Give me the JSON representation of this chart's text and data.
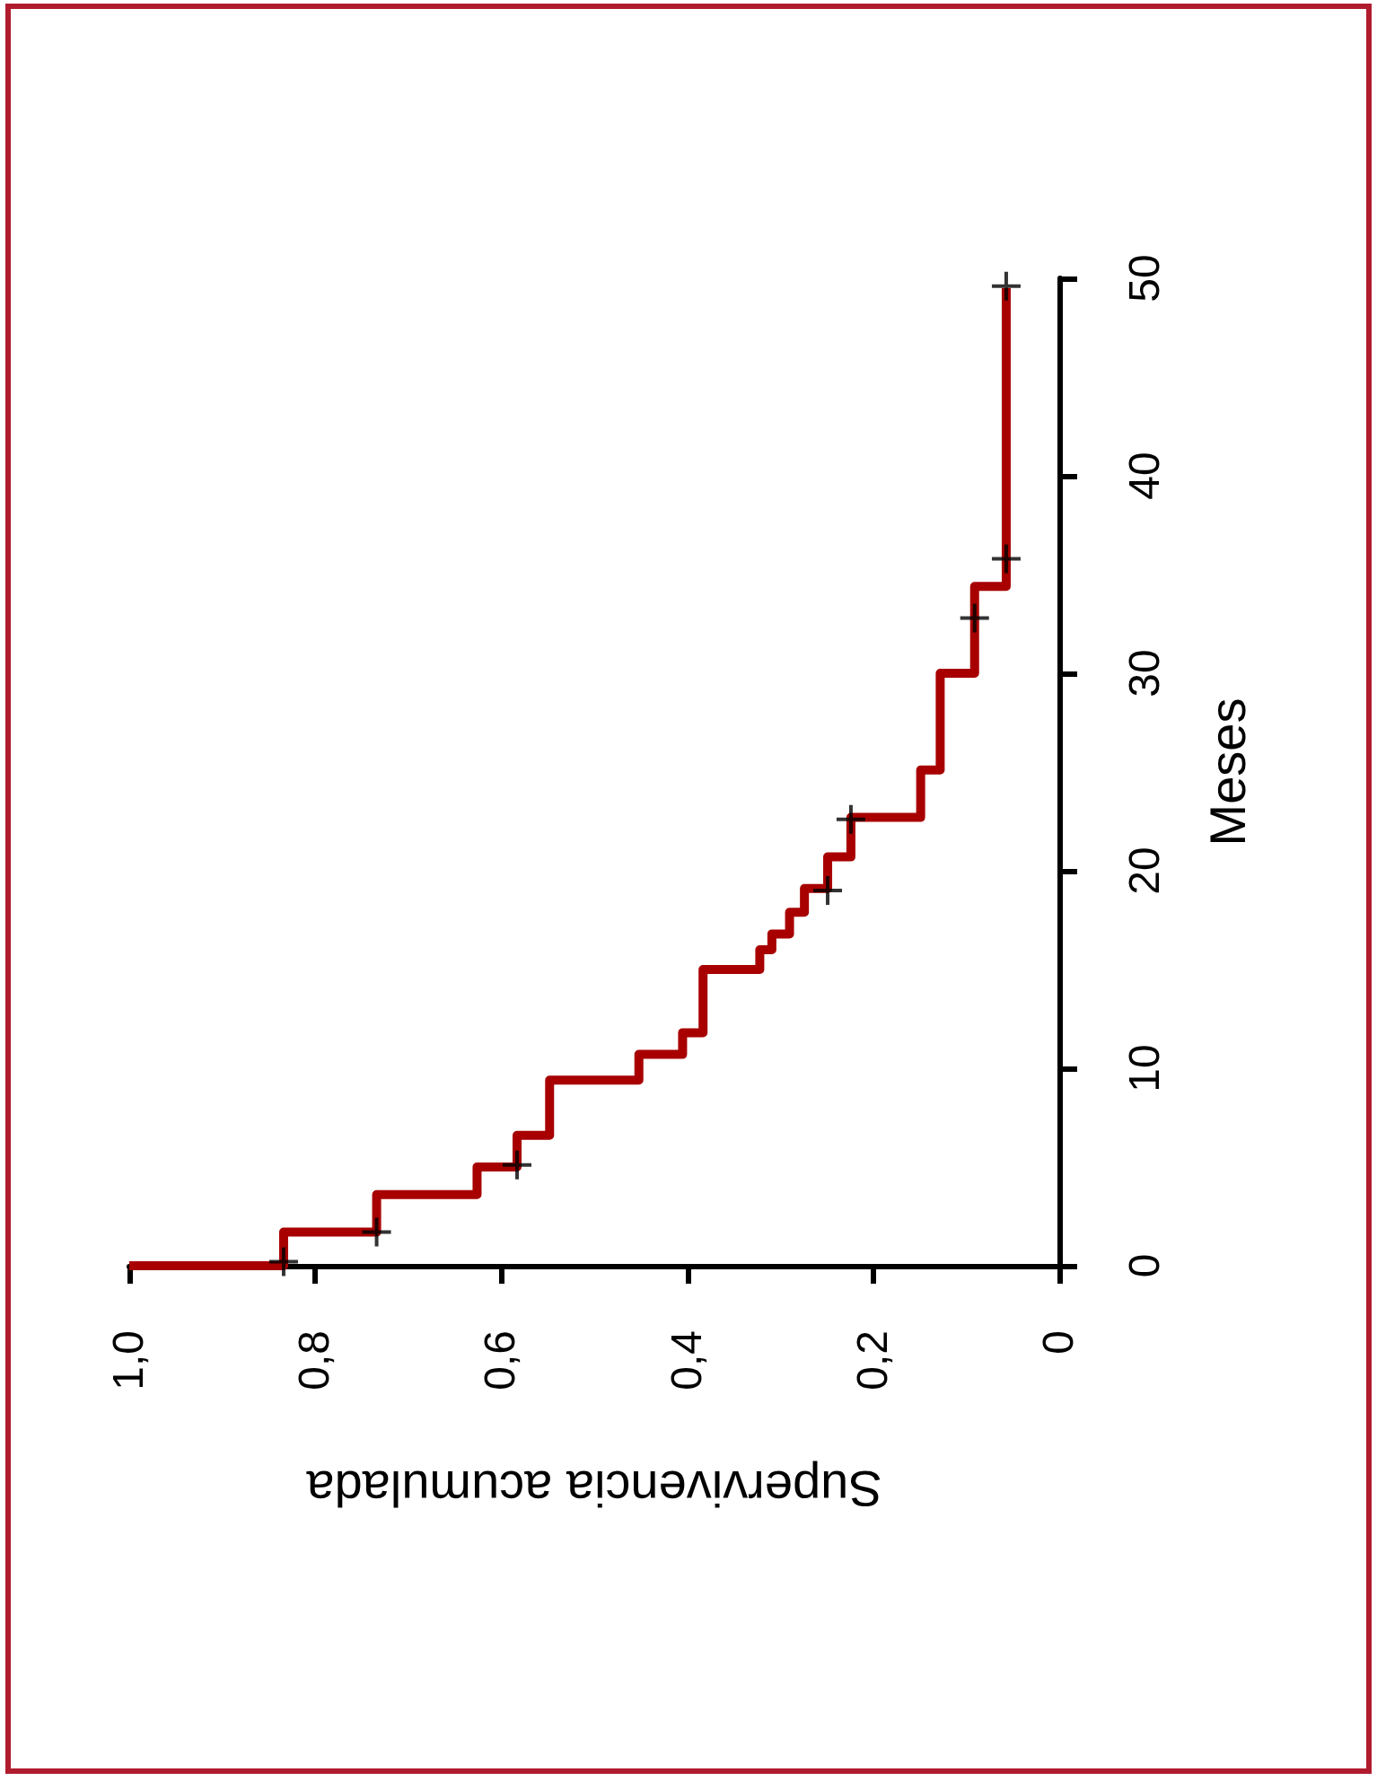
{
  "chart_data": {
    "type": "step",
    "xlabel": "Supervivencia acumulada",
    "ylabel": "Meses",
    "xlim": [
      1,
      0
    ],
    "xticks": [
      {
        "value": 1,
        "label": "1,0"
      },
      {
        "value": 0.8,
        "label": "0,8"
      },
      {
        "value": 0.6,
        "label": "0,6"
      },
      {
        "value": 0.4,
        "label": "0,4"
      },
      {
        "value": 0.2,
        "label": "0,2"
      },
      {
        "value": 0,
        "label": "0"
      }
    ],
    "ylim": [
      0,
      50
    ],
    "yticks": [
      0,
      10,
      20,
      30,
      40,
      50
    ],
    "grid": false,
    "series": [
      {
        "color": "#a80000",
        "line_style": "solid",
        "marker": "none",
        "x": [
          1.0,
          0.834,
          0.734,
          0.626,
          0.583,
          0.548,
          0.452,
          0.405,
          0.383,
          0.322,
          0.309,
          0.29,
          0.274,
          0.249,
          0.224,
          0.149,
          0.128,
          0.091,
          0.057,
          0.057
        ],
        "values": [
          0,
          0,
          1.7,
          3.6,
          5.0,
          6.6,
          9.4,
          10.7,
          11.8,
          15.0,
          16.0,
          16.8,
          17.9,
          19.1,
          20.7,
          22.7,
          25.1,
          30.0,
          34.4,
          49.5
        ]
      },
      {
        "type": "scatter",
        "color": "#000000",
        "marker": "cross",
        "x": [
          0.834,
          0.734,
          0.583,
          0.249,
          0.224,
          0.091,
          0.057,
          0.057
        ],
        "values": [
          0.2,
          1.7,
          5.1,
          19.0,
          22.6,
          32.8,
          35.8,
          49.6
        ]
      }
    ]
  }
}
